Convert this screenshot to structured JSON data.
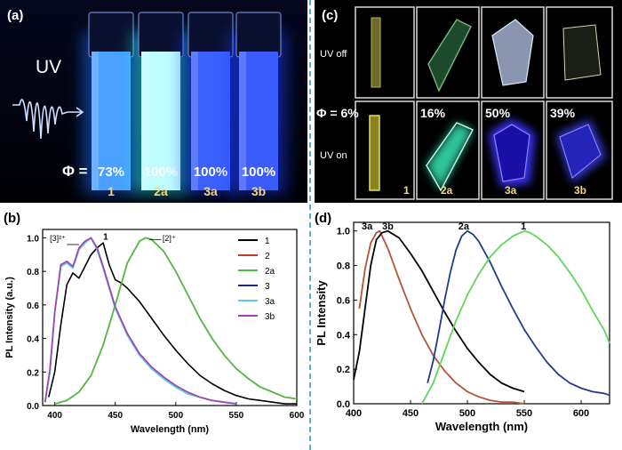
{
  "panel_a": {
    "label": "(a)",
    "uv_label": "UV",
    "phi_label": "Φ =",
    "vials": [
      {
        "sample": "1",
        "qy": "73%",
        "glow": "#1f6bff",
        "core": "#4aa0ff"
      },
      {
        "sample": "2a",
        "qy": "100%",
        "glow": "#20e8e8",
        "core": "#bffcff"
      },
      {
        "sample": "3a",
        "qy": "100%",
        "glow": "#1638ff",
        "core": "#3a60ff"
      },
      {
        "sample": "3b",
        "qy": "100%",
        "glow": "#1e3cff",
        "core": "#3a5cff"
      }
    ],
    "sample_label_color": "#f3d77a"
  },
  "panel_c": {
    "label": "(c)",
    "row_off_label": "UV off",
    "row_on_label": "UV on",
    "qy_values": [
      "Φ = 6%",
      "16%",
      "50%",
      "39%"
    ],
    "samples": [
      "1",
      "2a",
      "3a",
      "3b"
    ],
    "sample_label_color": "#f3d77a"
  },
  "chart_data": [
    {
      "type": "line",
      "panel": "(b)",
      "xlabel": "Wavelength (nm)",
      "ylabel": "PL Intensity (a.u.)",
      "xlim": [
        390,
        600
      ],
      "ylim": [
        0,
        1.05
      ],
      "xticks": [
        "400",
        "450",
        "500",
        "550",
        "600"
      ],
      "yticks": [
        "0.0",
        "0.2",
        "0.4",
        "0.6",
        "0.8",
        "1.0"
      ],
      "annotations": [
        "[3]²⁺",
        "1",
        "[2]⁺"
      ],
      "series": [
        {
          "name": "1",
          "color": "#000000",
          "x": [
            395,
            400,
            405,
            410,
            415,
            420,
            425,
            430,
            435,
            440,
            445,
            450,
            455,
            460,
            470,
            480,
            490,
            500,
            510,
            520,
            530,
            540,
            550,
            560,
            570,
            580,
            590,
            600
          ],
          "y": [
            0.05,
            0.2,
            0.48,
            0.72,
            0.79,
            0.76,
            0.83,
            0.9,
            0.94,
            0.97,
            0.84,
            0.75,
            0.73,
            0.7,
            0.62,
            0.52,
            0.42,
            0.33,
            0.25,
            0.18,
            0.13,
            0.09,
            0.06,
            0.04,
            0.03,
            0.02,
            0.01,
            0.01
          ]
        },
        {
          "name": "2",
          "color": "#c0392b",
          "x": [
            400,
            410,
            420,
            430,
            440,
            450,
            460,
            470,
            475,
            480,
            490,
            500,
            510,
            520,
            530,
            540,
            550,
            560,
            570,
            580,
            590,
            600
          ],
          "y": [
            0.01,
            0.03,
            0.08,
            0.18,
            0.36,
            0.6,
            0.85,
            0.98,
            1.0,
            0.99,
            0.92,
            0.8,
            0.66,
            0.52,
            0.4,
            0.3,
            0.22,
            0.16,
            0.11,
            0.08,
            0.05,
            0.04
          ]
        },
        {
          "name": "2a",
          "color": "#48c044",
          "x": [
            400,
            410,
            420,
            430,
            440,
            450,
            460,
            470,
            475,
            480,
            490,
            500,
            510,
            520,
            530,
            540,
            550,
            560,
            570,
            580,
            590,
            600
          ],
          "y": [
            0.01,
            0.03,
            0.08,
            0.18,
            0.36,
            0.6,
            0.85,
            0.98,
            1.0,
            0.99,
            0.92,
            0.8,
            0.66,
            0.52,
            0.4,
            0.3,
            0.22,
            0.16,
            0.11,
            0.08,
            0.05,
            0.04
          ]
        },
        {
          "name": "3",
          "color": "#1a2a8a",
          "x": [
            392,
            396,
            400,
            405,
            410,
            415,
            420,
            425,
            430,
            435,
            440,
            445,
            450,
            460,
            470,
            480,
            490,
            500,
            510,
            520,
            530,
            540,
            550
          ],
          "y": [
            0.02,
            0.2,
            0.55,
            0.83,
            0.85,
            0.82,
            0.93,
            0.97,
            1.0,
            0.93,
            0.82,
            0.7,
            0.58,
            0.42,
            0.3,
            0.22,
            0.16,
            0.11,
            0.07,
            0.05,
            0.03,
            0.02,
            0.01
          ]
        },
        {
          "name": "3a",
          "color": "#5bc8e8",
          "x": [
            392,
            396,
            400,
            405,
            410,
            415,
            420,
            425,
            430,
            435,
            440,
            445,
            450,
            460,
            470,
            480,
            490,
            500,
            510,
            520,
            530,
            540,
            550
          ],
          "y": [
            0.02,
            0.2,
            0.55,
            0.83,
            0.85,
            0.82,
            0.93,
            0.97,
            1.0,
            0.93,
            0.82,
            0.7,
            0.58,
            0.42,
            0.3,
            0.22,
            0.16,
            0.11,
            0.07,
            0.05,
            0.03,
            0.02,
            0.01
          ]
        },
        {
          "name": "3b",
          "color": "#a040b0",
          "x": [
            392,
            396,
            400,
            405,
            410,
            415,
            420,
            425,
            430,
            435,
            440,
            445,
            450,
            460,
            470,
            480,
            490,
            500,
            510,
            520,
            530,
            540,
            550
          ],
          "y": [
            0.02,
            0.22,
            0.56,
            0.84,
            0.86,
            0.83,
            0.94,
            0.98,
            1.0,
            0.94,
            0.83,
            0.71,
            0.59,
            0.43,
            0.31,
            0.23,
            0.17,
            0.12,
            0.08,
            0.05,
            0.03,
            0.02,
            0.01
          ]
        }
      ]
    },
    {
      "type": "line",
      "panel": "(d)",
      "xlabel": "Wavelength (nm)",
      "ylabel": "PL Intensity",
      "xlim": [
        400,
        625
      ],
      "ylim": [
        0,
        1.05
      ],
      "xticks": [
        "400",
        "450",
        "500",
        "550",
        "600"
      ],
      "yticks": [
        "0.0",
        "0.2",
        "0.4",
        "0.6",
        "0.8",
        "1.0"
      ],
      "annotations": [
        "3a",
        "3b",
        "2a",
        "1"
      ],
      "series": [
        {
          "name": "3a",
          "color": "#b5543a",
          "x": [
            405,
            410,
            415,
            420,
            423,
            430,
            440,
            450,
            460,
            470,
            480,
            490,
            500,
            510,
            520,
            530,
            540,
            550
          ],
          "y": [
            0.55,
            0.78,
            0.93,
            0.99,
            1.0,
            0.9,
            0.72,
            0.55,
            0.4,
            0.28,
            0.19,
            0.12,
            0.07,
            0.04,
            0.02,
            0.01,
            0.01,
            0.0
          ]
        },
        {
          "name": "3b",
          "color": "#000000",
          "x": [
            400,
            405,
            410,
            415,
            420,
            425,
            430,
            440,
            450,
            460,
            470,
            480,
            490,
            500,
            510,
            520,
            530,
            540,
            550
          ],
          "y": [
            0.14,
            0.3,
            0.55,
            0.8,
            0.95,
            0.99,
            1.0,
            0.96,
            0.87,
            0.77,
            0.65,
            0.53,
            0.42,
            0.32,
            0.24,
            0.17,
            0.12,
            0.09,
            0.07
          ]
        },
        {
          "name": "2a",
          "color": "#1e3c8c",
          "x": [
            465,
            470,
            475,
            480,
            485,
            490,
            495,
            500,
            505,
            510,
            520,
            530,
            540,
            550,
            560,
            570,
            580,
            590,
            600,
            610,
            620,
            625
          ],
          "y": [
            0.12,
            0.25,
            0.42,
            0.6,
            0.76,
            0.89,
            0.97,
            1.0,
            0.98,
            0.94,
            0.82,
            0.68,
            0.55,
            0.43,
            0.33,
            0.24,
            0.17,
            0.12,
            0.09,
            0.07,
            0.06,
            0.05
          ]
        },
        {
          "name": "1",
          "color": "#5fd65a",
          "x": [
            460,
            470,
            480,
            490,
            500,
            510,
            520,
            530,
            540,
            550,
            555,
            560,
            570,
            580,
            590,
            600,
            610,
            620,
            625
          ],
          "y": [
            0.0,
            0.12,
            0.3,
            0.48,
            0.63,
            0.75,
            0.85,
            0.92,
            0.97,
            1.0,
            0.99,
            0.97,
            0.92,
            0.85,
            0.76,
            0.66,
            0.54,
            0.43,
            0.35
          ]
        }
      ]
    }
  ]
}
